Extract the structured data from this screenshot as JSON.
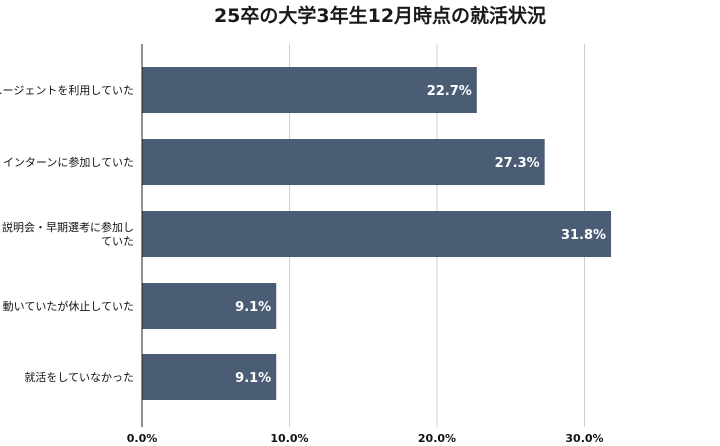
{
  "chart_data": {
    "type": "bar",
    "orientation": "horizontal",
    "title": "25卒の大学3年生12月時点の就活状況",
    "categories": [
      "…ージェントを利用していた",
      "インターンに参加していた",
      "説明会・早期選考に参加し\nていた",
      "動いていたが休止していた",
      "就活をしていなかった"
    ],
    "values": [
      22.7,
      27.3,
      31.8,
      9.1,
      9.1
    ],
    "data_labels": [
      "22.7%",
      "27.3%",
      "31.8%",
      "9.1%",
      "9.1%"
    ],
    "xticks": [
      "0.0%",
      "10.0%",
      "20.0%",
      "30.0%",
      "4"
    ],
    "xlim": [
      0,
      40
    ],
    "grid": true,
    "bar_color": "#4a5d74"
  }
}
